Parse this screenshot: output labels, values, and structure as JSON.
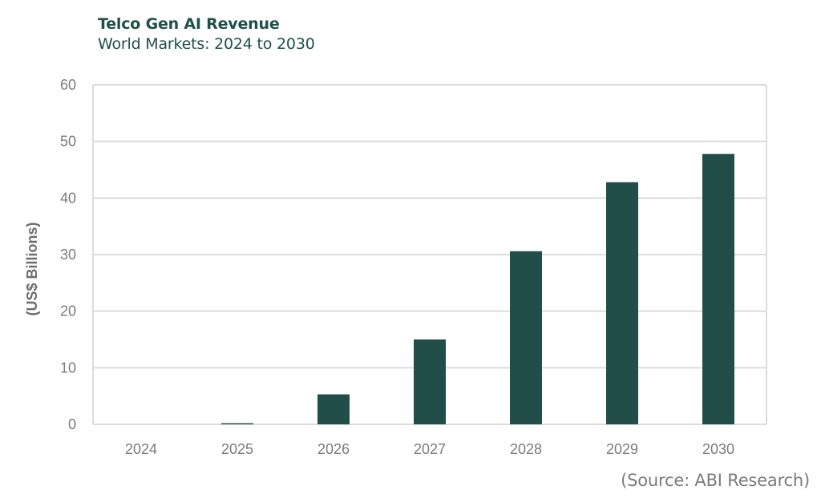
{
  "header": {
    "title": "Telco Gen AI Revenue",
    "subtitle": "World Markets: 2024 to 2030"
  },
  "footer": {
    "source": "(Source: ABI Research)"
  },
  "colors": {
    "bar": "#214e48",
    "title": "#1f5048",
    "grid": "#dcdcdc",
    "tick_text": "#7b7b7b"
  },
  "chart_data": {
    "type": "bar",
    "title": "Telco Gen AI Revenue",
    "subtitle": "World Markets: 2024 to 2030",
    "xlabel": "",
    "ylabel": "(US$ Billions)",
    "categories": [
      "2024",
      "2025",
      "2026",
      "2027",
      "2028",
      "2029",
      "2030"
    ],
    "values": [
      0,
      0.2,
      5.3,
      15.0,
      30.6,
      42.8,
      47.8
    ],
    "ylim": [
      0,
      60
    ],
    "yticks": [
      0,
      10,
      20,
      30,
      40,
      50,
      60
    ],
    "grid": true,
    "legend": "none",
    "source": "(Source: ABI Research)"
  }
}
